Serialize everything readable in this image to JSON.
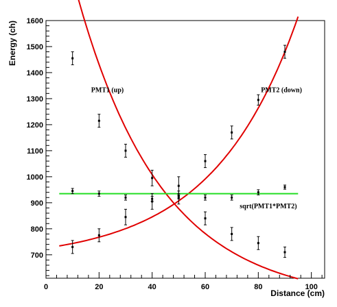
{
  "chart_data": {
    "type": "scatter",
    "xlabel": "Distance (cm)",
    "ylabel": "Energy (ch)",
    "xlim": [
      0,
      105
    ],
    "ylim": [
      610,
      1600
    ],
    "xticks": [
      0,
      20,
      40,
      60,
      80,
      100
    ],
    "yticks": [
      700,
      800,
      900,
      1000,
      1100,
      1200,
      1300,
      1400,
      1500,
      1600
    ],
    "grid": false,
    "legend": "none",
    "series": [
      {
        "color": "#e00000",
        "x": [
          10,
          20,
          30,
          40,
          50,
          60,
          70,
          80,
          90
        ],
        "y": [
          1455,
          1215,
          1100,
          995,
          920,
          840,
          780,
          745,
          710
        ],
        "err": [
          25,
          25,
          25,
          30,
          25,
          25,
          25,
          25,
          20
        ],
        "fit": {
          "x0": 5,
          "x1": 95,
          "a": 1701,
          "k": 0.0312,
          "c": 520
        }
      },
      {
        "color": "#e00000",
        "x": [
          10,
          20,
          30,
          40,
          50,
          60,
          70,
          80,
          90
        ],
        "y": [
          730,
          775,
          845,
          905,
          965,
          1060,
          1170,
          1295,
          1480
        ],
        "err": [
          25,
          25,
          30,
          30,
          35,
          25,
          25,
          20,
          25
        ],
        "fit": {
          "x0": 5,
          "x1": 95,
          "a": 47.9,
          "k": 0.0313,
          "c": 678
        }
      },
      {
        "color": "#22dd22",
        "x": [
          10,
          20,
          30,
          40,
          50,
          60,
          70,
          80,
          90
        ],
        "y": [
          945,
          935,
          920,
          915,
          925,
          920,
          920,
          940,
          960
        ],
        "err": [
          10,
          10,
          10,
          10,
          10,
          10,
          10,
          10,
          8
        ],
        "fit": {
          "x0": 5,
          "x1": 95,
          "constant": 935
        }
      }
    ],
    "annotations": [
      {
        "text": "PMT1 (up)",
        "x": 17,
        "y": 1325
      },
      {
        "text": "PMT2 (down)",
        "x": 81,
        "y": 1325
      },
      {
        "text": "sqrt(PMT1*PMT2)",
        "x": 73,
        "y": 878
      }
    ]
  }
}
